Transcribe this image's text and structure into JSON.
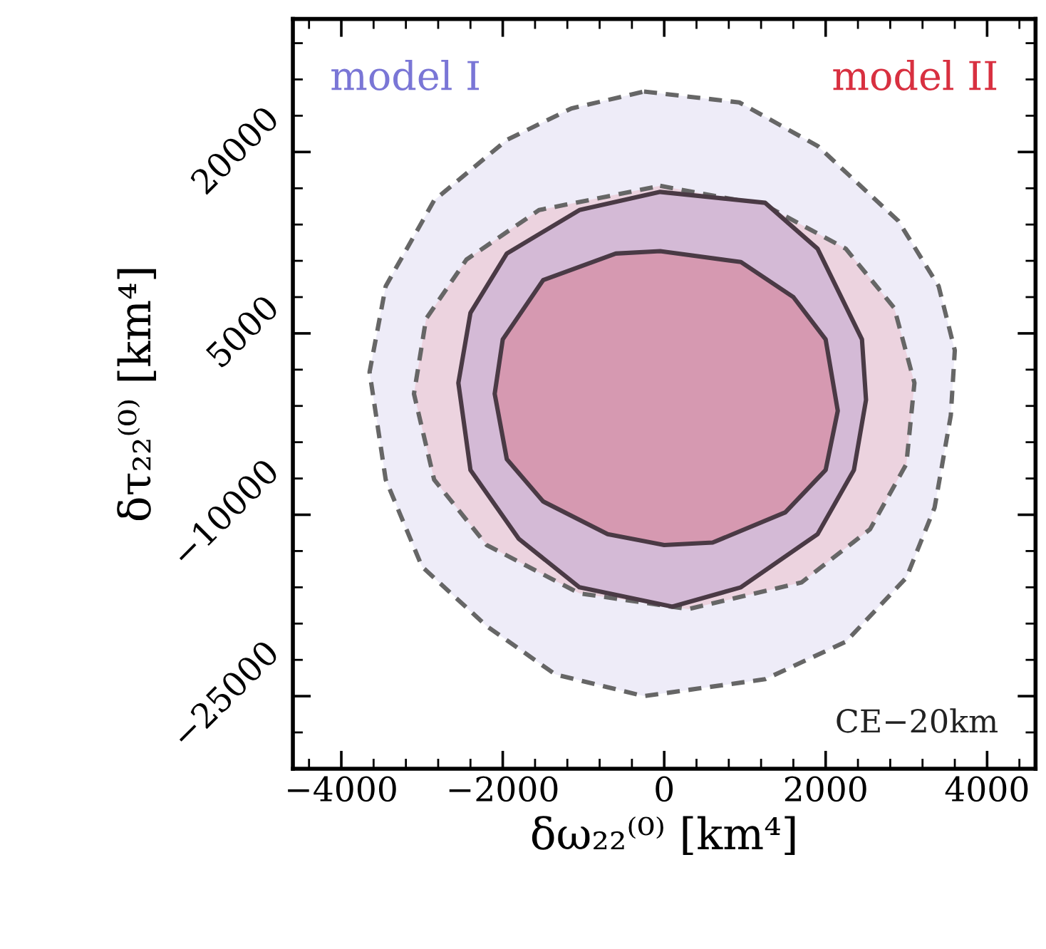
{
  "chart_data": {
    "type": "area",
    "xlabel": "δω₂₂⁽⁰⁾ [km⁴]",
    "ylabel": "δτ₂₂⁽⁰⁾ [km⁴]",
    "annotations": [
      "model I",
      "model II",
      "CE−20km"
    ],
    "xlim": [
      -4600,
      4600
    ],
    "ylim": [
      -31000,
      31000
    ],
    "xticks": [
      -4000,
      -2000,
      0,
      2000,
      4000
    ],
    "yticks": [
      -25000,
      -10000,
      5000,
      20000
    ],
    "grid": false,
    "series": [
      {
        "color": "#eeecf8",
        "line_style": "dashed",
        "x": [
          -250,
          930,
          1900,
          2900,
          3400,
          3600,
          3550,
          3350,
          3000,
          2250,
          1250,
          -250,
          -1350,
          -2200,
          -3000,
          -3450,
          -3650,
          -3450,
          -2850,
          -1950,
          -1150
        ],
        "values": [
          25000,
          24100,
          20500,
          14300,
          8900,
          3600,
          -1800,
          -9400,
          -15200,
          -20500,
          -23600,
          -25000,
          -23200,
          -19200,
          -14300,
          -7100,
          1800,
          8900,
          16000,
          21000,
          23600
        ]
      },
      {
        "color": "#ecd3df",
        "line_style": "dashed",
        "x": [
          -50,
          1250,
          2250,
          2850,
          3100,
          3000,
          2550,
          1700,
          300,
          -1050,
          -2200,
          -2850,
          -3100,
          -2950,
          -2450,
          -1550
        ],
        "values": [
          17200,
          15600,
          12000,
          7100,
          900,
          -5800,
          -11200,
          -15600,
          -17800,
          -16500,
          -12500,
          -7100,
          0,
          6200,
          11100,
          15200
        ]
      },
      {
        "color": "#d4bad6",
        "line_style": "solid",
        "x": [
          -50,
          1250,
          1900,
          2450,
          2500,
          2350,
          1900,
          950,
          100,
          -1050,
          -1800,
          -2400,
          -2550,
          -2400,
          -1950,
          -1050
        ],
        "values": [
          16700,
          15800,
          12000,
          4500,
          -500,
          -6300,
          -11600,
          -16000,
          -17600,
          -16000,
          -12000,
          -6300,
          900,
          6700,
          11600,
          15200
        ]
      },
      {
        "color": "#d699b1",
        "line_style": "solid",
        "x": [
          -50,
          950,
          1600,
          2000,
          2150,
          2000,
          1500,
          600,
          0,
          -700,
          -1500,
          -1950,
          -2100,
          -2000,
          -1500,
          -600
        ],
        "values": [
          11800,
          10900,
          8000,
          4500,
          -1400,
          -6300,
          -9800,
          -12300,
          -12500,
          -11600,
          -8900,
          -5400,
          0,
          4500,
          9400,
          11600
        ]
      }
    ]
  }
}
